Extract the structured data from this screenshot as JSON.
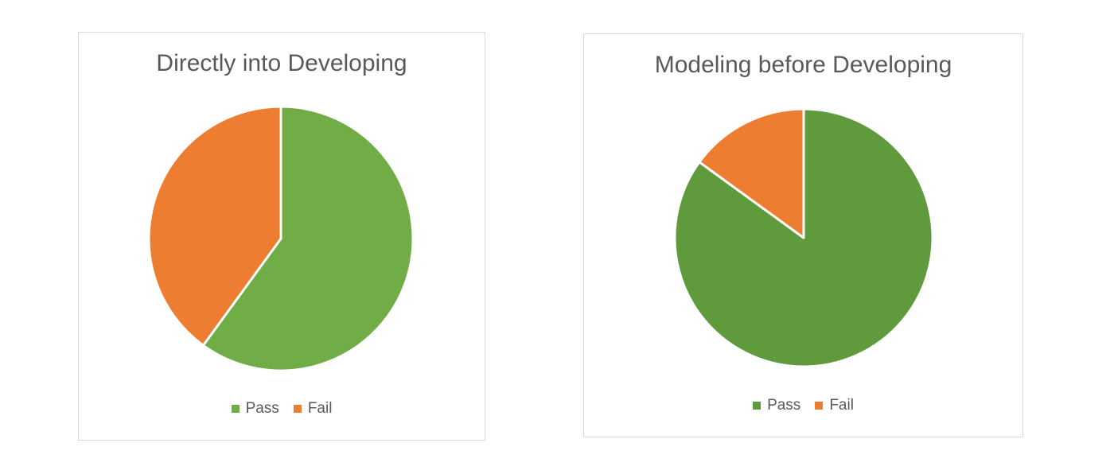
{
  "chart_data": [
    {
      "type": "pie",
      "title": "Directly into Developing",
      "categories": [
        "Pass",
        "Fail"
      ],
      "values": [
        60,
        40
      ],
      "colors": [
        "#70AD47",
        "#ED7D31"
      ],
      "legend": {
        "position": "bottom",
        "items": [
          "Pass",
          "Fail"
        ]
      }
    },
    {
      "type": "pie",
      "title": "Modeling before Developing",
      "categories": [
        "Pass",
        "Fail"
      ],
      "values": [
        85,
        15
      ],
      "colors": [
        "#5F9B3D",
        "#ED7D31"
      ],
      "legend": {
        "position": "bottom",
        "items": [
          "Pass",
          "Fail"
        ]
      }
    }
  ]
}
